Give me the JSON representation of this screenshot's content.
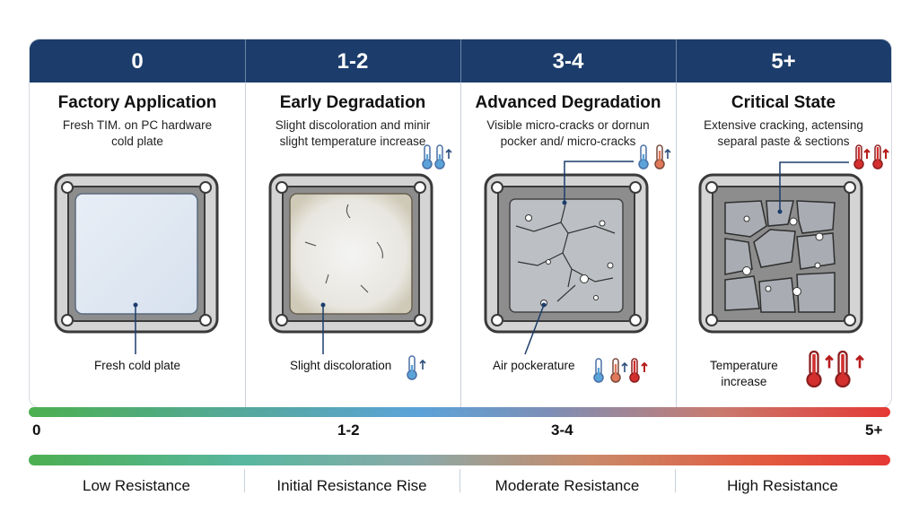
{
  "stages": [
    {
      "num": "0",
      "title": "Factory Application",
      "desc1": "Fresh TIM. on PC hardware",
      "desc2": "cold plate",
      "callout": "Fresh cold plate"
    },
    {
      "num": "1-2",
      "title": "Early Degradation",
      "desc1": "Slight discoloration and minir",
      "desc2": "slight temperature increase",
      "callout": "Slight discoloration"
    },
    {
      "num": "3-4",
      "title": "Advanced Degradation",
      "desc1": "Visible micro-cracks or dornun",
      "desc2": "pocker and/ micro-cracks",
      "callout": "Air pockerature"
    },
    {
      "num": "5+",
      "title": "Critical State",
      "desc1": "Extensive cracking, actensing",
      "desc2": "separal paste & sections",
      "callout1": "Temperature",
      "callout2": "increase"
    }
  ],
  "scale": {
    "t0": "0",
    "t1": "1-2",
    "t2": "3-4",
    "t3": "5+"
  },
  "resistance": [
    "Low Resistance",
    "Initial Resistance Rise",
    "Moderate Resistance",
    "High Resistance"
  ],
  "colors": {
    "header": "#1c3d6b",
    "green": "#4caf50",
    "blue": "#5aa3d8",
    "orange": "#e08a5a",
    "red": "#e53935"
  },
  "icons": [
    "thermometer-icon",
    "up-arrow-icon",
    "crack-pattern",
    "air-bubble"
  ]
}
